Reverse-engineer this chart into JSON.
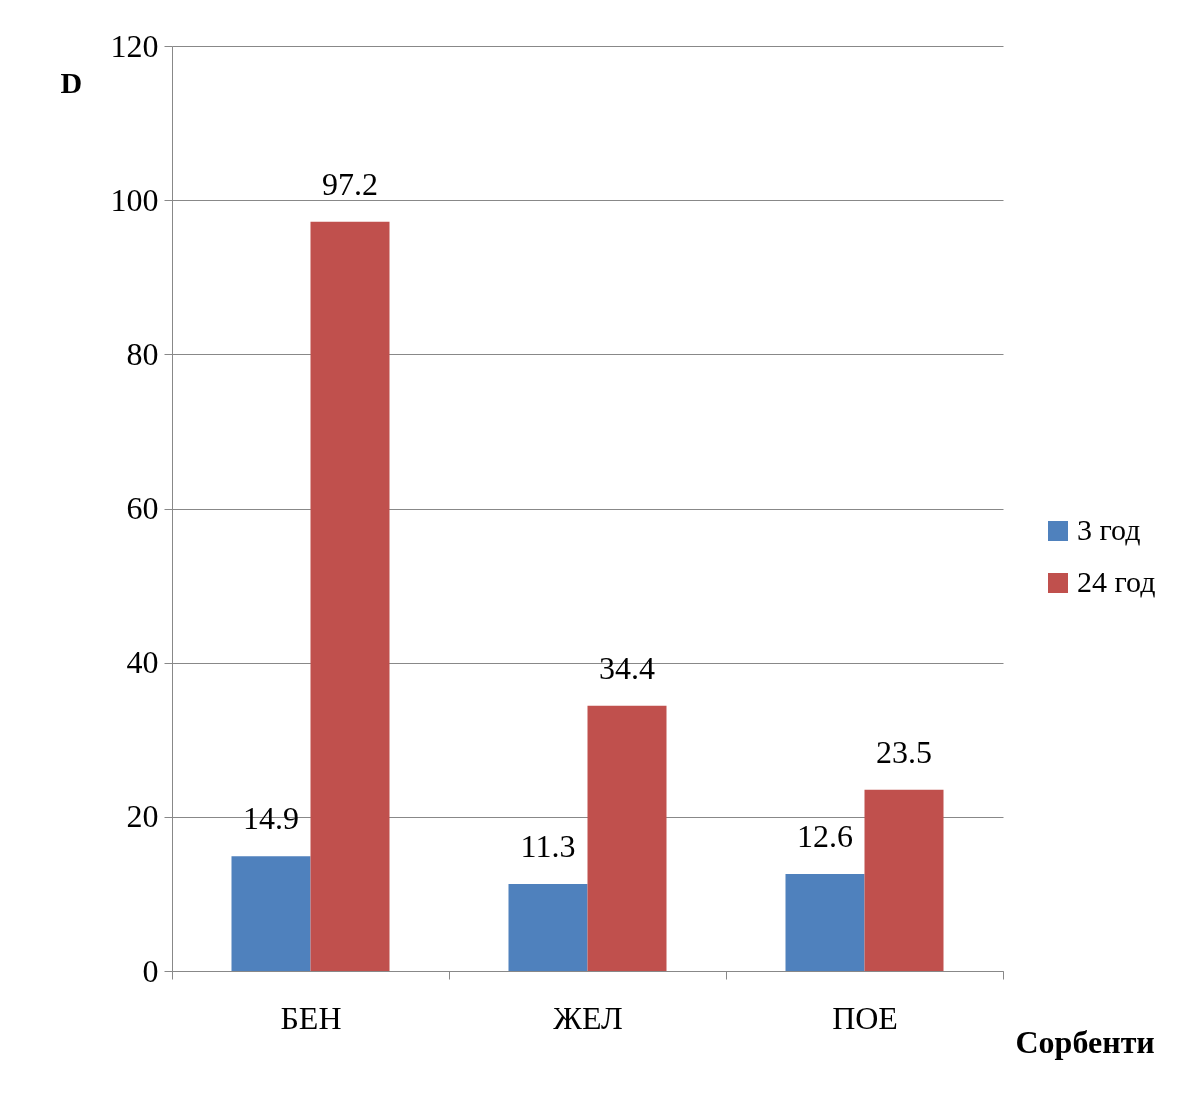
{
  "chart_data": {
    "type": "bar",
    "xlabel": "Сорбенти",
    "ylabel": "D",
    "categories": [
      "БЕН",
      "ЖЕЛ",
      "ПОЕ"
    ],
    "series": [
      {
        "name": "3 год",
        "color": "#4f81bd",
        "values": [
          14.9,
          11.3,
          12.6
        ]
      },
      {
        "name": "24 год",
        "color": "#c0504d",
        "values": [
          97.2,
          34.4,
          23.5
        ]
      }
    ],
    "ylim": [
      0,
      120
    ],
    "yticks": [
      0,
      20,
      40,
      60,
      80,
      100,
      120
    ],
    "grid": "y",
    "legend": "right",
    "data_labels": true
  }
}
